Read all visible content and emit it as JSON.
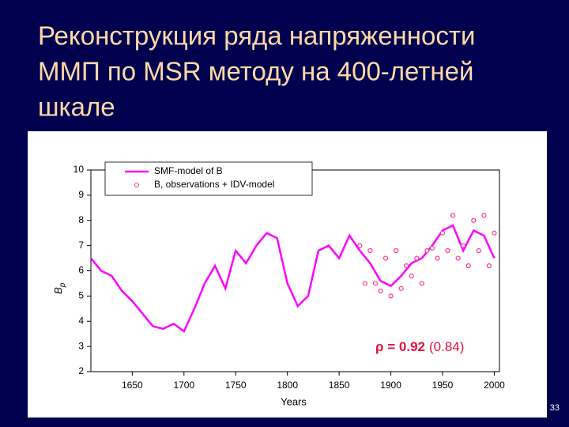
{
  "slide": {
    "title_lines": [
      "Реконструкция ряда напряженности",
      "ММП по MSR методу на 400-летней",
      "шкале"
    ],
    "page_number": "33"
  },
  "chart_data": {
    "type": "line",
    "x_label": "Years",
    "y_label": "B",
    "y_label_sub": "p",
    "annotation_bold": "ρ = 0.92",
    "annotation_rest": "(0.84)",
    "xlim": [
      1610,
      2005
    ],
    "xticks": [
      1650,
      1700,
      1750,
      1800,
      1850,
      1900,
      1950,
      2000
    ],
    "ylim": [
      2,
      10
    ],
    "yticks": [
      2,
      3,
      4,
      5,
      6,
      7,
      8,
      9,
      10
    ],
    "grid": false,
    "legend": "upper-left",
    "series": [
      {
        "name": "SMF-model of B",
        "color": "#ff00ff",
        "marker": "none",
        "x": [
          1610,
          1620,
          1630,
          1640,
          1650,
          1660,
          1670,
          1680,
          1690,
          1700,
          1710,
          1720,
          1730,
          1740,
          1750,
          1760,
          1770,
          1780,
          1790,
          1800,
          1810,
          1820,
          1830,
          1840,
          1850,
          1860,
          1870,
          1880,
          1890,
          1900,
          1910,
          1920,
          1930,
          1940,
          1950,
          1960,
          1970,
          1980,
          1990,
          2000
        ],
        "values": [
          6.5,
          6.0,
          5.8,
          5.2,
          4.8,
          4.3,
          3.8,
          3.7,
          3.9,
          3.6,
          4.5,
          5.5,
          6.2,
          5.3,
          6.8,
          6.3,
          7.0,
          7.5,
          7.3,
          5.5,
          4.6,
          5.0,
          6.8,
          7.0,
          6.5,
          7.4,
          6.8,
          6.3,
          5.6,
          5.4,
          5.8,
          6.3,
          6.5,
          7.0,
          7.6,
          7.8,
          6.8,
          7.6,
          7.4,
          6.5
        ]
      },
      {
        "name": "B, observations + IDV-model",
        "color": "#ff3399",
        "marker": "circle",
        "x": [
          1870,
          1875,
          1880,
          1885,
          1890,
          1895,
          1900,
          1905,
          1910,
          1915,
          1920,
          1925,
          1930,
          1935,
          1940,
          1945,
          1950,
          1955,
          1960,
          1965,
          1970,
          1975,
          1980,
          1985,
          1990,
          1995,
          2000
        ],
        "values": [
          7.0,
          5.5,
          6.8,
          5.5,
          5.2,
          6.5,
          5.0,
          6.8,
          5.3,
          6.2,
          5.8,
          6.5,
          5.5,
          6.8,
          6.9,
          6.5,
          7.5,
          6.8,
          8.2,
          6.5,
          7.0,
          6.2,
          8.0,
          6.8,
          8.2,
          6.2,
          7.5
        ]
      }
    ]
  }
}
